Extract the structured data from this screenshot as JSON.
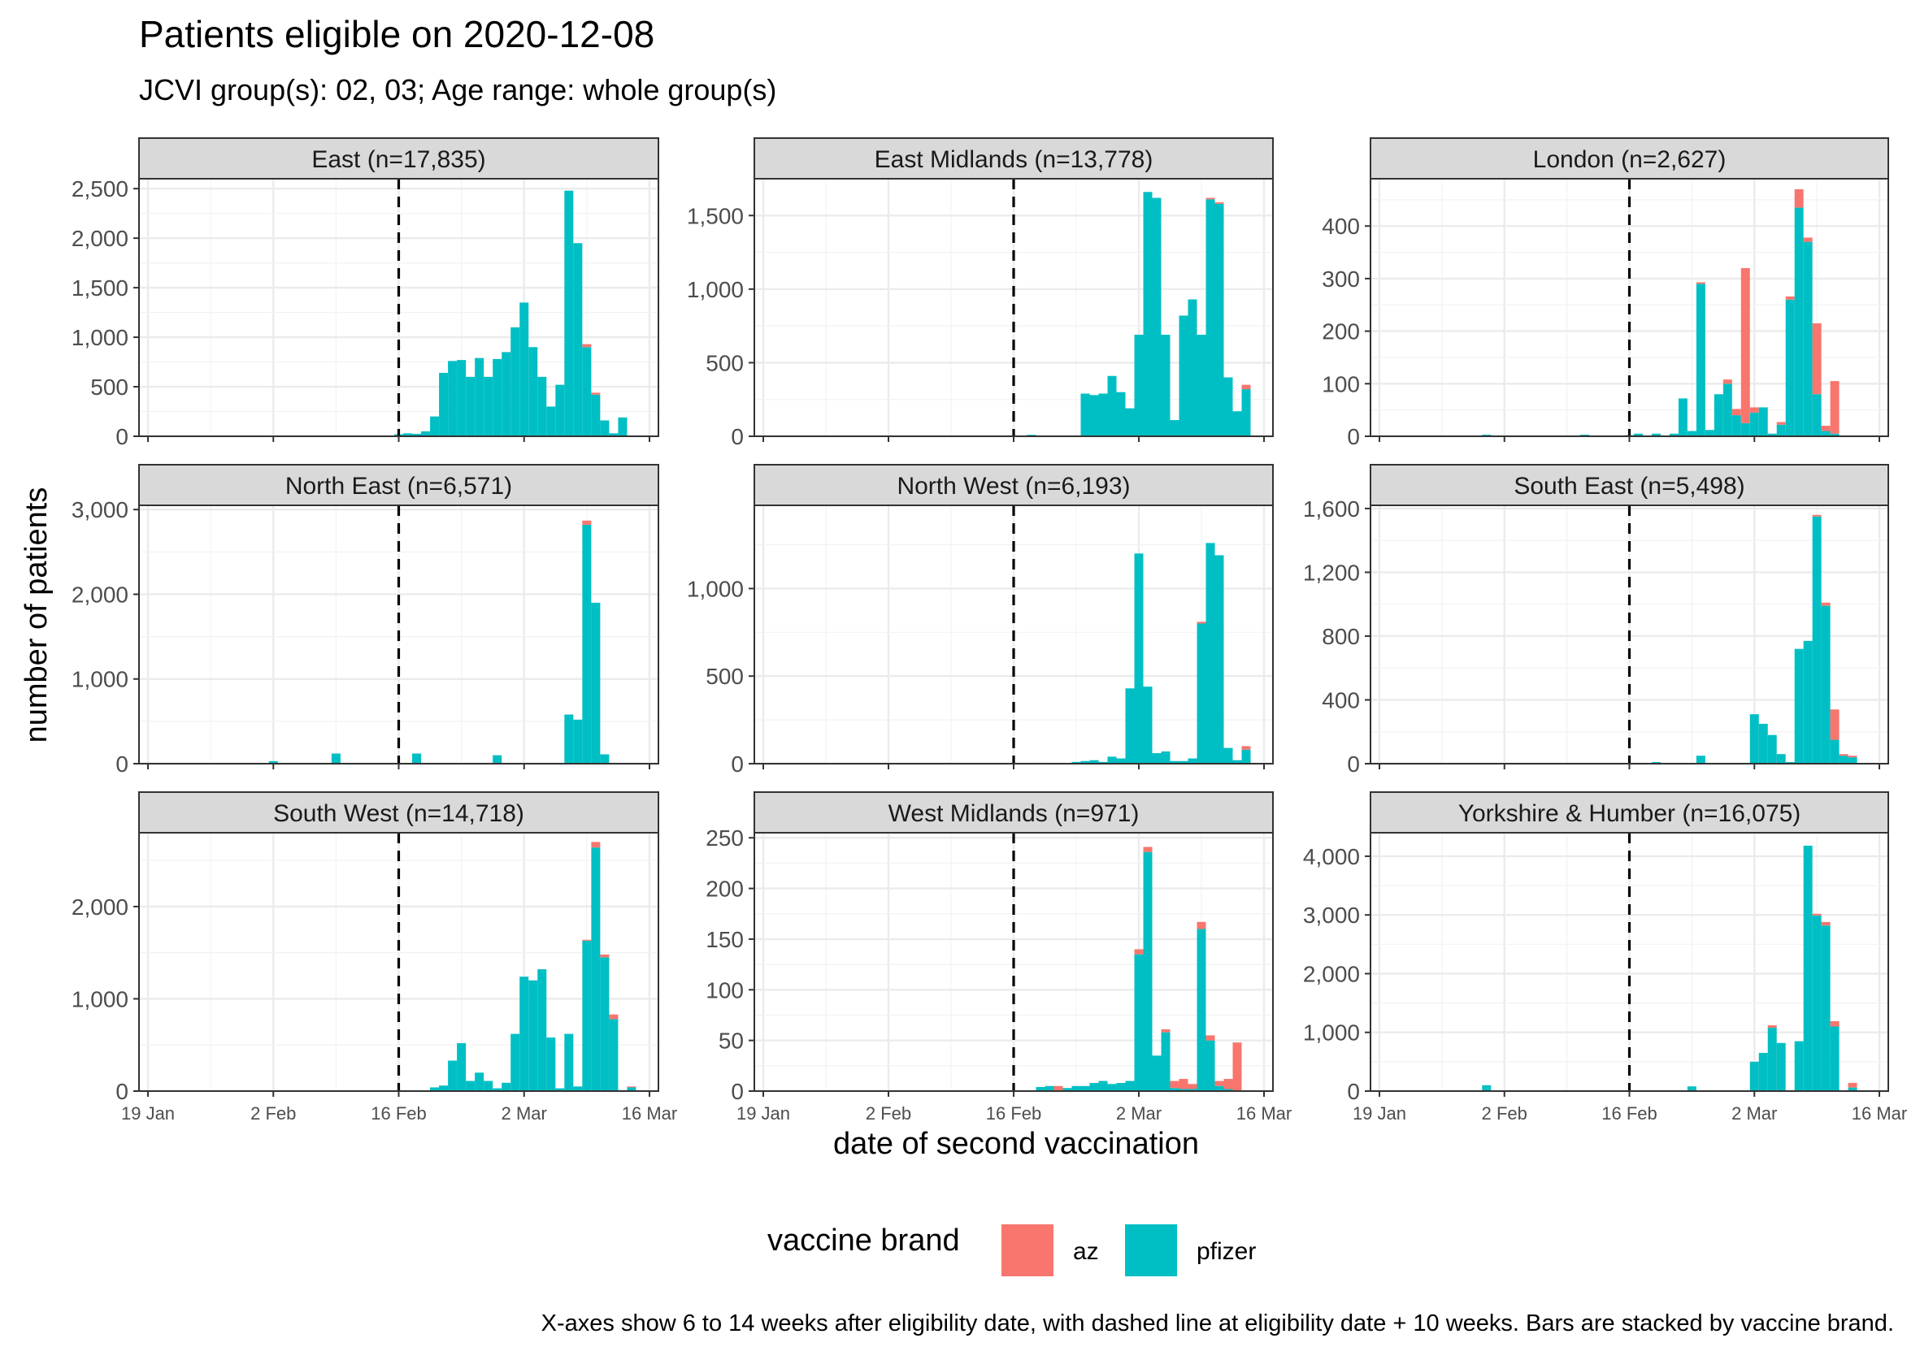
{
  "chart_data": {
    "type": "bar",
    "title": "Patients eligible on 2020-12-08",
    "subtitle": "JCVI group(s): 02, 03; Age range: whole group(s)",
    "xlabel": "date of second vaccination",
    "ylabel": "number of patients",
    "caption": "X-axes show 6 to 14 weeks after eligibility date, with dashed line at eligibility date + 10 weeks. Bars are stacked by vaccine brand.",
    "x_unit": "days since 19 Jan",
    "x_range": [
      -1,
      57
    ],
    "x_ticks": [
      {
        "label": "19 Jan",
        "day": 0
      },
      {
        "label": "2 Feb",
        "day": 14
      },
      {
        "label": "16 Feb",
        "day": 28
      },
      {
        "label": "2 Mar",
        "day": 42
      },
      {
        "label": "16 Mar",
        "day": 56
      }
    ],
    "reference_line_day": 28,
    "legend": {
      "title": "vaccine brand",
      "position": "bottom",
      "entries": [
        {
          "name": "az",
          "color": "#F8766D"
        },
        {
          "name": "pfizer",
          "color": "#00BFC4"
        }
      ]
    },
    "series_colors": {
      "az": "#F8766D",
      "pfizer": "#00BFC4"
    },
    "panels": [
      {
        "label": "East (n=17,835)",
        "ylim": [
          0,
          2600
        ],
        "y_ticks": [
          0,
          500,
          1000,
          1500,
          2000,
          2500
        ],
        "pfizer": {
          "28": 20,
          "29": 30,
          "30": 25,
          "31": 50,
          "32": 200,
          "33": 640,
          "34": 760,
          "35": 770,
          "36": 600,
          "37": 790,
          "38": 600,
          "39": 780,
          "40": 850,
          "41": 1100,
          "42": 1350,
          "43": 900,
          "44": 600,
          "45": 300,
          "46": 520,
          "47": 2480,
          "48": 1950,
          "49": 900,
          "50": 420,
          "51": 160,
          "52": 30,
          "53": 190
        },
        "az": {
          "49": 30,
          "50": 20
        }
      },
      {
        "label": "East Midlands (n=13,778)",
        "ylim": [
          0,
          1750
        ],
        "y_ticks": [
          0,
          500,
          1000,
          1500
        ],
        "pfizer": {
          "30": 10,
          "36": 290,
          "37": 280,
          "38": 290,
          "39": 410,
          "40": 300,
          "41": 190,
          "42": 690,
          "43": 1660,
          "44": 1620,
          "45": 690,
          "46": 110,
          "47": 820,
          "48": 930,
          "49": 690,
          "50": 1610,
          "51": 1580,
          "52": 400,
          "53": 170,
          "54": 320
        },
        "az": {
          "50": 10,
          "51": 10,
          "54": 30
        }
      },
      {
        "label": "London (n=2,627)",
        "ylim": [
          0,
          490
        ],
        "y_ticks": [
          0,
          100,
          200,
          300,
          400
        ],
        "pfizer": {
          "12": 3,
          "23": 3,
          "28": 2,
          "29": 5,
          "31": 5,
          "33": 5,
          "34": 72,
          "35": 10,
          "36": 290,
          "37": 12,
          "38": 80,
          "39": 100,
          "40": 40,
          "41": 25,
          "42": 45,
          "43": 55,
          "44": 5,
          "45": 22,
          "46": 260,
          "47": 435,
          "48": 370,
          "49": 80,
          "50": 10,
          "51": 5
        },
        "az": {
          "36": 3,
          "39": 8,
          "40": 12,
          "41": 295,
          "42": 10,
          "45": 5,
          "46": 6,
          "47": 35,
          "48": 8,
          "49": 135,
          "50": 10,
          "51": 100
        }
      },
      {
        "label": "North East (n=6,571)",
        "ylim": [
          0,
          3050
        ],
        "y_ticks": [
          0,
          1000,
          2000,
          3000
        ],
        "pfizer": {
          "14": 30,
          "21": 120,
          "30": 120,
          "39": 100,
          "47": 580,
          "48": 520,
          "49": 2820,
          "50": 1900,
          "51": 110
        },
        "az": {
          "49": 50,
          "52": 10
        }
      },
      {
        "label": "North West (n=6,193)",
        "ylim": [
          0,
          1475
        ],
        "y_ticks": [
          0,
          500,
          1000
        ],
        "pfizer": {
          "21": 5,
          "28": 5,
          "31": 5,
          "35": 10,
          "36": 15,
          "37": 20,
          "38": 10,
          "39": 40,
          "40": 30,
          "41": 430,
          "42": 1200,
          "43": 440,
          "44": 60,
          "45": 70,
          "46": 15,
          "47": 15,
          "48": 30,
          "49": 800,
          "50": 1260,
          "51": 1190,
          "52": 90,
          "53": 20,
          "54": 80
        },
        "az": {
          "49": 10,
          "54": 20
        }
      },
      {
        "label": "South East (n=5,498)",
        "ylim": [
          0,
          1620
        ],
        "y_ticks": [
          0,
          400,
          800,
          1200,
          1600
        ],
        "pfizer": {
          "31": 10,
          "36": 50,
          "42": 310,
          "43": 250,
          "44": 180,
          "45": 60,
          "46": 10,
          "47": 720,
          "48": 770,
          "49": 1550,
          "50": 990,
          "51": 150,
          "52": 50,
          "53": 40
        },
        "az": {
          "49": 10,
          "50": 20,
          "51": 190,
          "52": 10,
          "53": 10
        }
      },
      {
        "label": "South West (n=14,718)",
        "ylim": [
          0,
          2800
        ],
        "y_ticks": [
          0,
          1000,
          2000
        ],
        "pfizer": {
          "32": 40,
          "33": 60,
          "34": 330,
          "35": 520,
          "36": 110,
          "37": 200,
          "38": 110,
          "39": 30,
          "40": 90,
          "41": 620,
          "42": 1240,
          "43": 1200,
          "44": 1320,
          "45": 580,
          "46": 30,
          "47": 620,
          "48": 50,
          "49": 1630,
          "50": 2640,
          "51": 1450,
          "52": 780,
          "53": 10,
          "54": 40
        },
        "az": {
          "49": 10,
          "50": 60,
          "51": 30,
          "52": 50,
          "54": 10
        }
      },
      {
        "label": "West Midlands (n=971)",
        "ylim": [
          0,
          255
        ],
        "y_ticks": [
          0,
          50,
          100,
          150,
          200,
          250
        ],
        "pfizer": {
          "31": 4,
          "32": 5,
          "34": 3,
          "35": 5,
          "36": 5,
          "37": 8,
          "38": 10,
          "39": 7,
          "40": 8,
          "41": 10,
          "42": 135,
          "43": 236,
          "44": 35,
          "45": 58,
          "46": 3,
          "47": 2,
          "48": 2,
          "49": 160,
          "50": 50,
          "51": 5,
          "52": 2
        },
        "az": {
          "33": 5,
          "42": 5,
          "43": 5,
          "45": 3,
          "46": 7,
          "47": 10,
          "48": 5,
          "49": 7,
          "50": 5,
          "51": 5,
          "52": 10,
          "53": 48
        }
      },
      {
        "label": "Yorkshire & Humber (n=16,075)",
        "ylim": [
          0,
          4400
        ],
        "y_ticks": [
          0,
          1000,
          2000,
          3000,
          4000
        ],
        "pfizer": {
          "12": 100,
          "35": 80,
          "42": 500,
          "43": 650,
          "44": 1080,
          "45": 820,
          "47": 850,
          "48": 4180,
          "49": 2990,
          "50": 2820,
          "51": 1100,
          "53": 60
        },
        "az": {
          "44": 40,
          "49": 30,
          "50": 60,
          "51": 90,
          "53": 80
        }
      }
    ]
  }
}
